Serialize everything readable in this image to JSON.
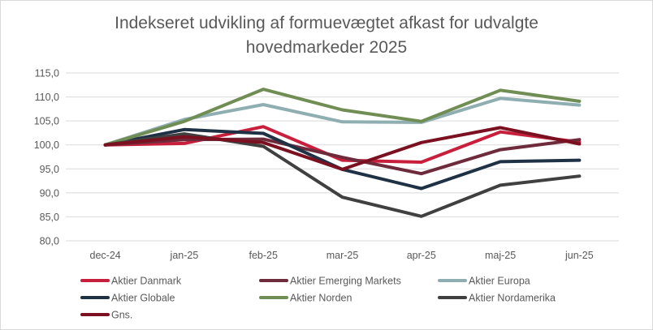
{
  "chart_data": {
    "type": "line",
    "title_lines": [
      "Indekseret udvikling af formuevægtet afkast for udvalgte",
      "hovedmarkeder 2025"
    ],
    "xlabel": "",
    "ylabel": "",
    "categories": [
      "dec-24",
      "jan-25",
      "feb-25",
      "mar-25",
      "apr-25",
      "maj-25",
      "jun-25"
    ],
    "ylim": [
      80,
      115
    ],
    "ytick_labels": [
      "80,0",
      "85,0",
      "90,0",
      "95,0",
      "100,0",
      "105,0",
      "110,0",
      "115,0"
    ],
    "yticks": [
      80,
      85,
      90,
      95,
      100,
      105,
      110,
      115
    ],
    "grid": true,
    "legend_position": "bottom",
    "series": [
      {
        "name": "Aktier Danmark",
        "color": "#c8203c",
        "values": [
          100.0,
          100.3,
          103.8,
          96.8,
          96.4,
          102.7,
          100.6
        ]
      },
      {
        "name": "Aktier Emerging Markets",
        "color": "#6e2b3c",
        "values": [
          100.0,
          101.1,
          101.2,
          97.4,
          94.0,
          99.0,
          101.1
        ]
      },
      {
        "name": "Aktier Europa",
        "color": "#8eaeb1",
        "values": [
          100.0,
          105.3,
          108.4,
          104.8,
          104.7,
          109.7,
          108.3
        ]
      },
      {
        "name": "Aktier Globale",
        "color": "#1f3144",
        "values": [
          100.0,
          103.2,
          102.4,
          94.9,
          90.9,
          96.5,
          96.8
        ]
      },
      {
        "name": "Aktier Norden",
        "color": "#708d54",
        "values": [
          100.0,
          104.9,
          111.6,
          107.3,
          104.9,
          111.4,
          109.1
        ]
      },
      {
        "name": "Aktier Nordamerika",
        "color": "#404040",
        "values": [
          100.0,
          102.3,
          99.7,
          89.1,
          85.1,
          91.6,
          93.5
        ]
      },
      {
        "name": "Gns.",
        "color": "#7b1020",
        "values": [
          100.0,
          101.7,
          100.5,
          94.9,
          100.5,
          103.6,
          100.2
        ]
      }
    ]
  }
}
